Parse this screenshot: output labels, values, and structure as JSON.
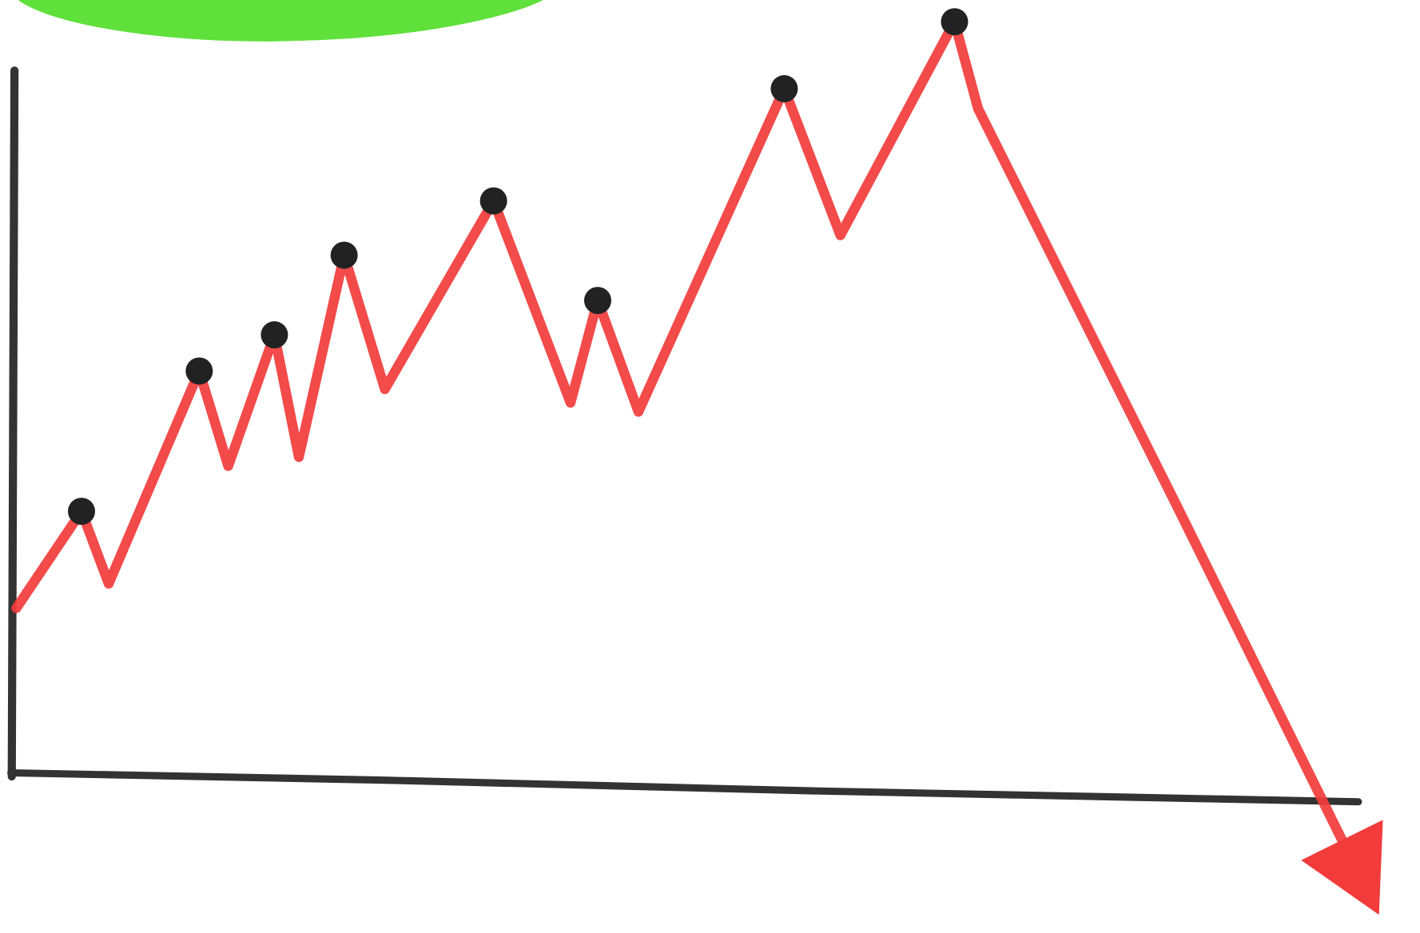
{
  "chart_data": {
    "type": "line",
    "x": [
      3,
      75,
      105,
      205,
      237,
      288,
      315,
      365,
      410,
      530,
      615,
      645,
      690,
      851,
      913,
      1039,
      1065,
      1285,
      1490
    ],
    "values": [
      188,
      295,
      215,
      450,
      345,
      490,
      355,
      578,
      430,
      638,
      415,
      528,
      405,
      762,
      600,
      836,
      740,
      300,
      -115
    ],
    "xlim": [
      -15,
      1553
    ],
    "ylim": [
      -171,
      860
    ],
    "color": "#f23b3b",
    "marker_color": "#222222",
    "axis_color": "#333333"
  }
}
